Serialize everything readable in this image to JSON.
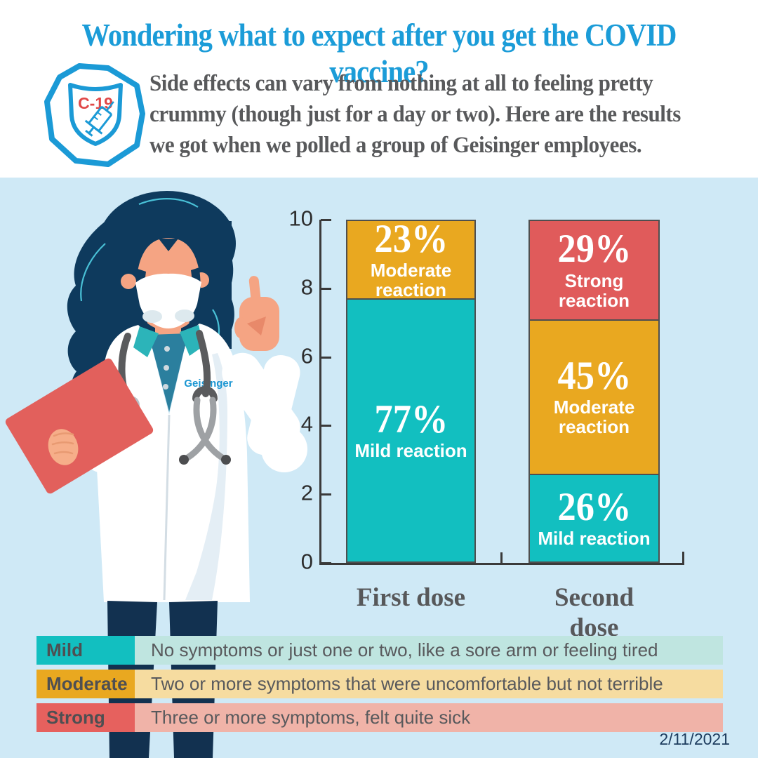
{
  "header": {
    "title": "Wondering what to expect after you get the COVID vaccine?",
    "badge": {
      "label": "C-19",
      "icon": "shield-syringe-icon"
    },
    "subtitle_lines": [
      "Side effects can vary from nothing at all to feeling pretty",
      "crummy (though just for a day or two). Here are the results",
      "we got when we polled a group of Geisinger employees."
    ]
  },
  "illustration": {
    "description": "masked female doctor pointing up, holding red clipboard",
    "logo_text": "Geisinger"
  },
  "chart_data": {
    "type": "bar",
    "subtype": "stacked",
    "title": "",
    "xlabel": "",
    "ylabel": "",
    "ylim": [
      0,
      10
    ],
    "yticks": [
      0,
      2,
      4,
      6,
      8,
      10
    ],
    "grid": false,
    "unit": "%",
    "categories": [
      "First dose",
      "Second dose"
    ],
    "series": [
      {
        "name": "Mild reaction",
        "key": "mild",
        "color": "#12bfc0",
        "values": [
          77,
          26
        ],
        "label_lines": [
          "Mild reaction"
        ]
      },
      {
        "name": "Moderate reaction",
        "key": "moderate",
        "color": "#e9a820",
        "values": [
          23,
          45
        ],
        "label_lines": [
          "Moderate",
          "reaction"
        ]
      },
      {
        "name": "Strong reaction",
        "key": "strong",
        "color": "#e05b5b",
        "values": [
          0,
          29
        ],
        "label_lines": [
          "Strong reaction"
        ]
      }
    ],
    "legend_position": "bottom"
  },
  "legend": {
    "rows": [
      {
        "label": "Mild",
        "color": "#12bfc0",
        "bg": "#bfe5e0",
        "desc": "No symptoms or just one or two, like a sore arm or feeling tired"
      },
      {
        "label": "Moderate",
        "color": "#e9a820",
        "bg": "#f6dca0",
        "desc": "Two or more symptoms that were uncomfortable but not terrible"
      },
      {
        "label": "Strong",
        "color": "#e6615e",
        "bg": "#f0b3a8",
        "desc": "Three or more symptoms, felt quite sick"
      }
    ]
  },
  "footer": {
    "date": "2/11/2021"
  },
  "colors": {
    "title_blue": "#1b9cd8",
    "subtitle_gray": "#58595b",
    "panel_bg": "#cfe9f6",
    "axis": "#3a3a3a",
    "pants_navy": "#123150",
    "clipboard_red": "#e2605c"
  }
}
